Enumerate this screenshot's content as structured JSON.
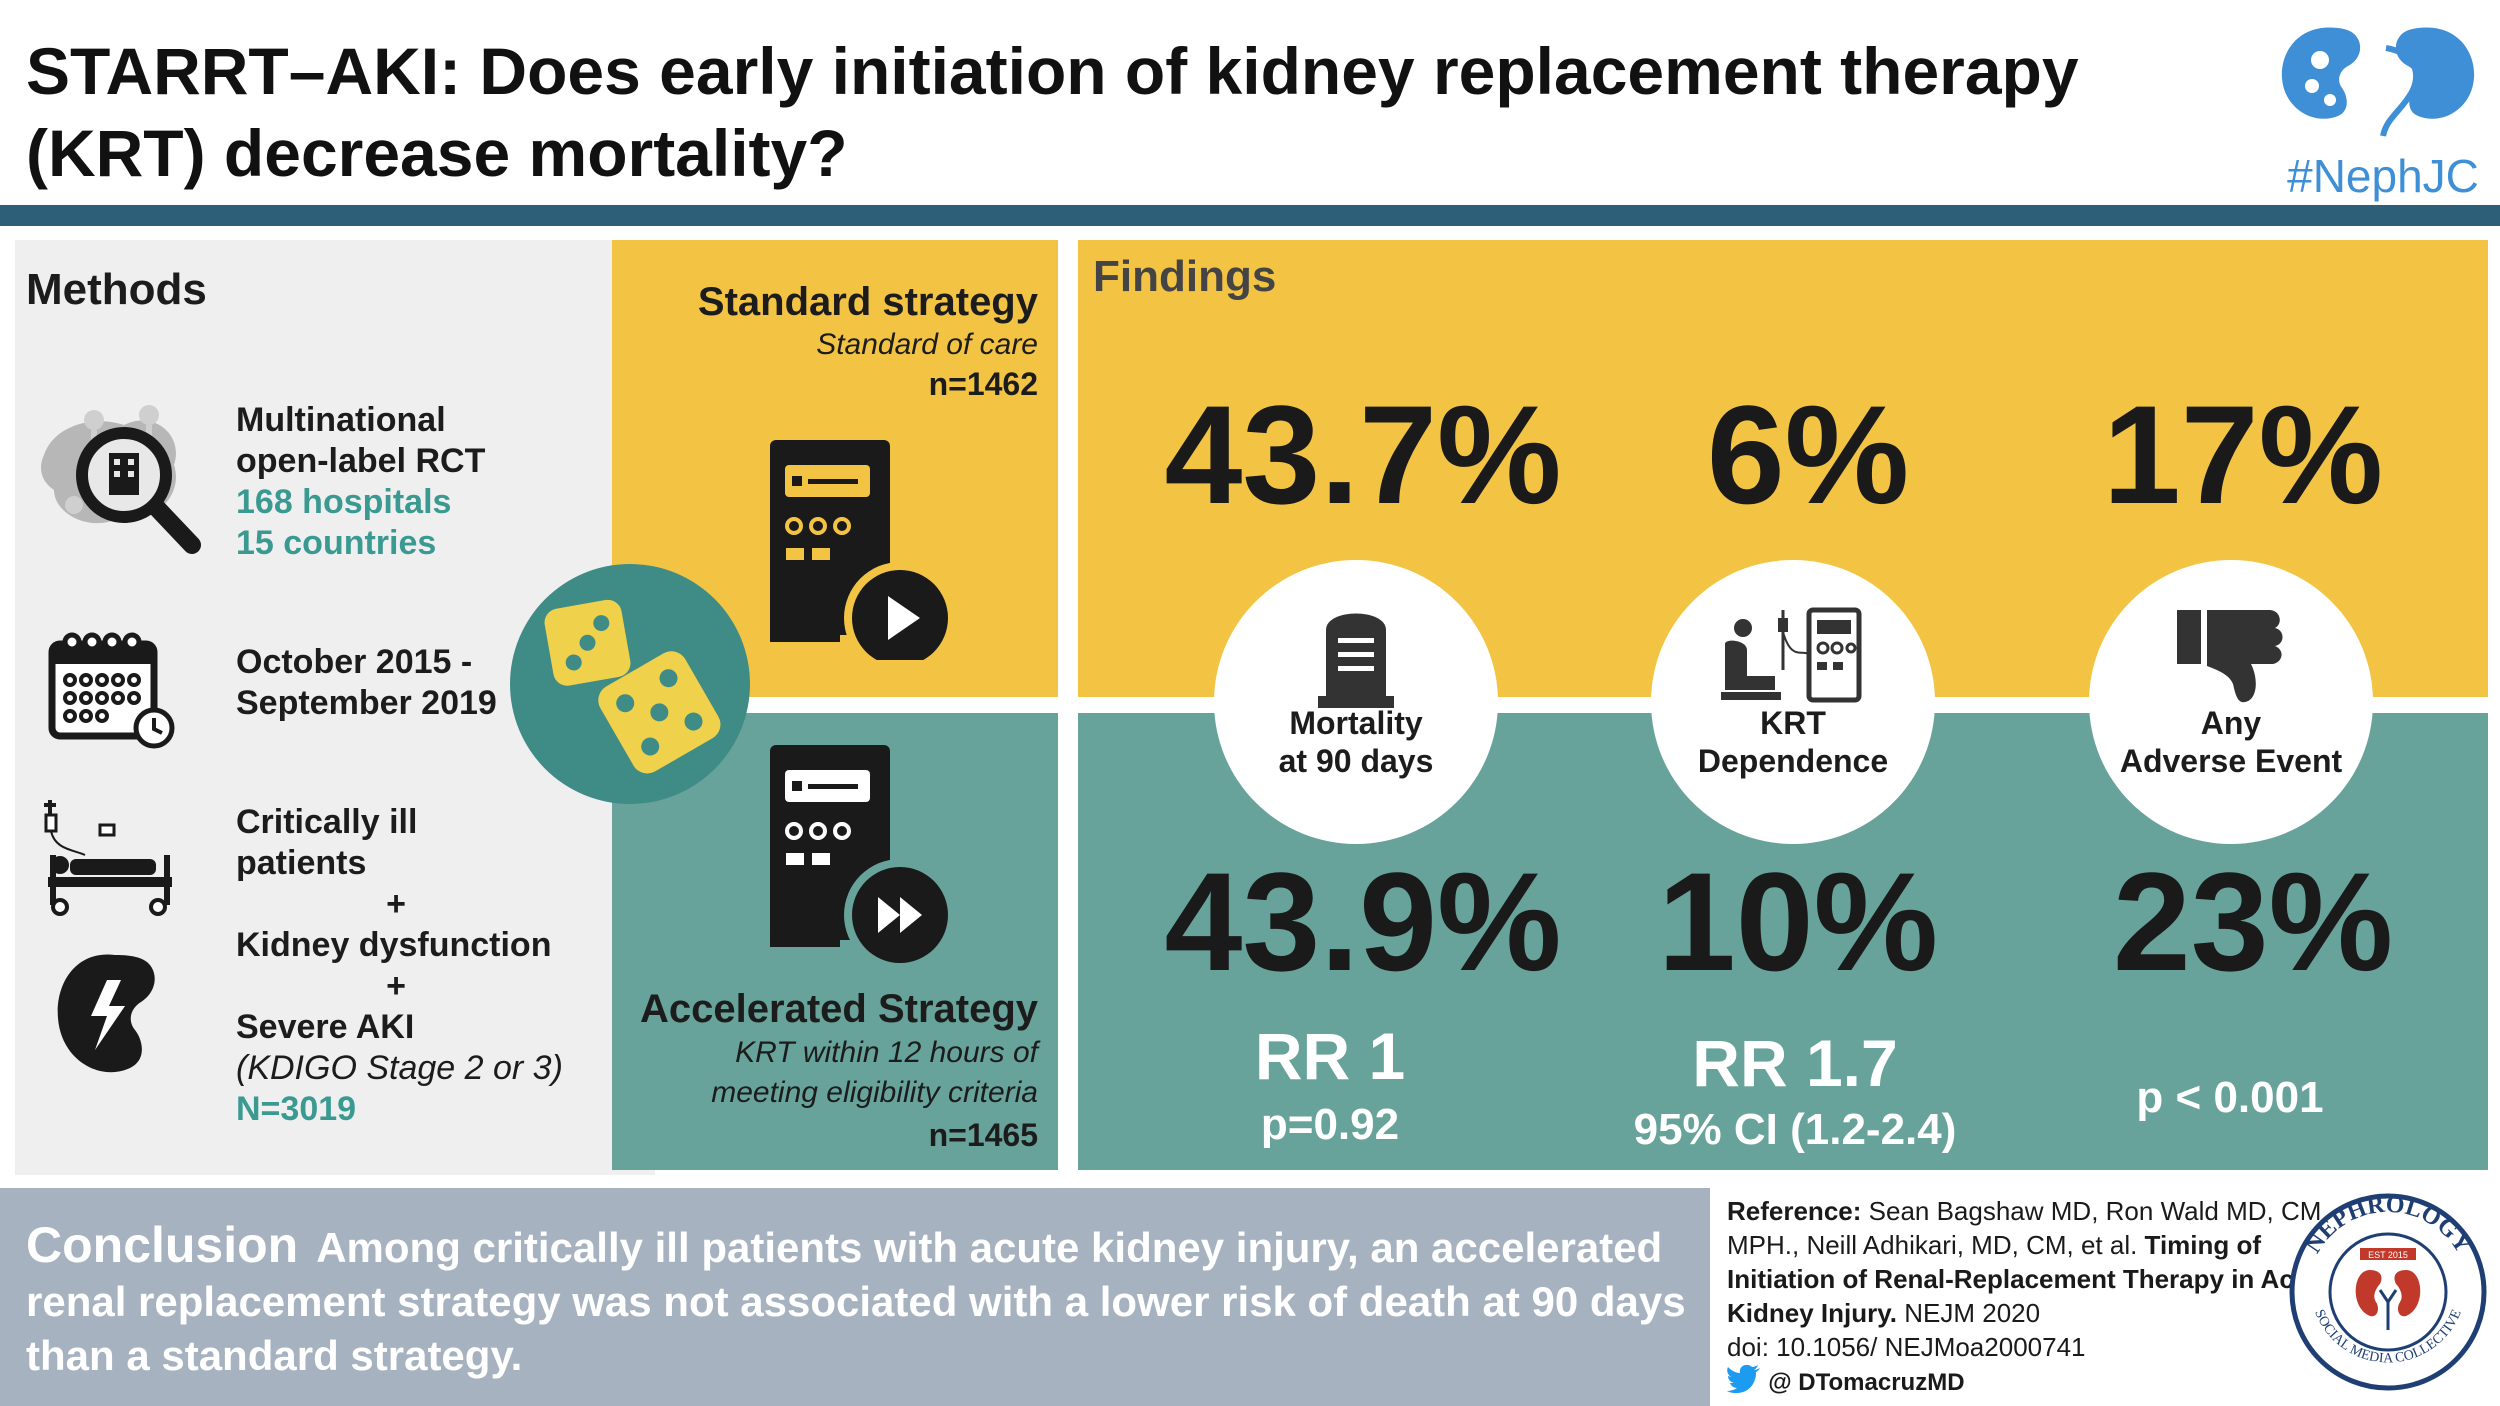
{
  "title": "STARRT–AKI: Does early initiation of kidney replacement therapy (KRT) decrease mortality?",
  "brand": {
    "hashtag": "#NephJC"
  },
  "methods": {
    "heading": "Methods",
    "design_line1": "Multinational",
    "design_line2": "open-label RCT",
    "hospitals": "168 hospitals",
    "countries": "15 countries",
    "period_line1": "October 2015 -",
    "period_line2": "September 2019",
    "criteria_1": "Critically ill patients",
    "plus": "+",
    "criteria_2": "Kidney dysfunction",
    "criteria_3": "Severe AKI",
    "criteria_3_detail": "(KDIGO Stage 2 or 3)",
    "n_total": "N=3019"
  },
  "standard": {
    "name": "Standard strategy",
    "desc": "Standard of care",
    "n": "n=1462"
  },
  "accelerated": {
    "name": "Accelerated Strategy",
    "desc_line1": "KRT within 12 hours of",
    "desc_line2": "meeting eligibility criteria",
    "n": "n=1465"
  },
  "findings": {
    "heading": "Findings",
    "outcomes": [
      {
        "label_line1": "Mortality",
        "label_line2": "at 90 days",
        "standard": "43.7%",
        "accelerated": "43.9%",
        "rr": "RR 1",
        "stat": "p=0.92"
      },
      {
        "label_line1": "KRT",
        "label_line2": "Dependence",
        "standard": "6%",
        "accelerated": "10%",
        "rr": "RR 1.7",
        "stat": "95% CI (1.2-2.4)"
      },
      {
        "label_line1": "Any",
        "label_line2": "Adverse Event",
        "standard": "17%",
        "accelerated": "23%",
        "rr": "",
        "stat": "p < 0.001"
      }
    ]
  },
  "conclusion": {
    "heading": "Conclusion",
    "text": "Among critically ill patients with acute kidney injury, an accelerated renal replacement strategy was not associated with a lower risk of death at 90 days than a standard strategy."
  },
  "reference": {
    "label": "Reference:",
    "authors": "Sean Bagshaw MD, Ron Wald MD, CM, MPH., Neill Adhikari, MD, CM, et al.",
    "article": "Timing of Initiation of Renal-Replacement Therapy in Acute Kidney Injury.",
    "journal": "NEJM 2020",
    "doi": "doi: 10.1056/ NEJMoa2000741",
    "handle": "@ DTomacruzMD"
  },
  "logo": {
    "top": "NEPHROLOGY",
    "bottom": "SOCIAL MEDIA COLLECTIVE",
    "est": "EST 2015"
  },
  "colors": {
    "yellow": "#f3c444",
    "teal": "#67a39a",
    "dark_teal": "#3f8c86",
    "header_bar": "#2e5f79",
    "conclusion_bg": "#a6b2bf",
    "accent_teal_text": "#3a9a92",
    "brand_blue": "#3f8fd6"
  }
}
